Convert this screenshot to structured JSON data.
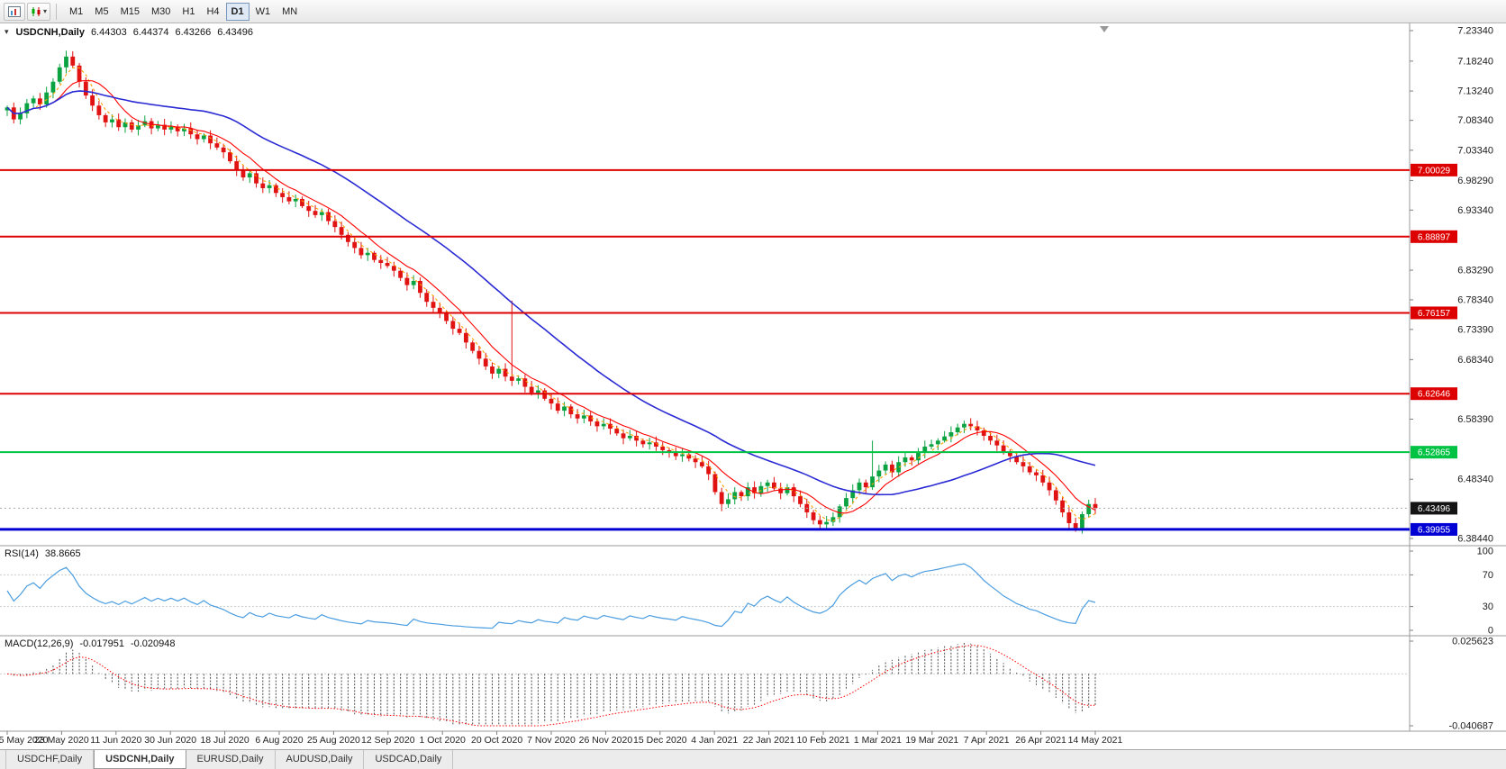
{
  "toolbar": {
    "icon_buttons": [
      {
        "name": "chart-window-button"
      },
      {
        "name": "chart-type-button",
        "has_dropdown": true
      }
    ],
    "timeframes": [
      {
        "label": "M1",
        "active": false
      },
      {
        "label": "M5",
        "active": false
      },
      {
        "label": "M15",
        "active": false
      },
      {
        "label": "M30",
        "active": false
      },
      {
        "label": "H1",
        "active": false
      },
      {
        "label": "H4",
        "active": false
      },
      {
        "label": "D1",
        "active": true
      },
      {
        "label": "W1",
        "active": false
      },
      {
        "label": "MN",
        "active": false
      }
    ]
  },
  "main_title": {
    "symbol": "USDCNH,Daily",
    "open": "6.44303",
    "high": "6.44374",
    "low": "6.43266",
    "close": "6.43496"
  },
  "rsi_panel": {
    "label": "RSI(14)",
    "value": "38.8665"
  },
  "macd_panel": {
    "label": "MACD(12,26,9)",
    "main": "-0.017951",
    "signal": "-0.020948"
  },
  "tabs": [
    {
      "label": "USDCHF,Daily",
      "active": false
    },
    {
      "label": "USDCNH,Daily",
      "active": true
    },
    {
      "label": "EURUSD,Daily",
      "active": false
    },
    {
      "label": "AUDUSD,Daily",
      "active": false
    },
    {
      "label": "USDCAD,Daily",
      "active": false
    }
  ],
  "chart_data": {
    "type": "candlestick",
    "symbol": "USDCNH",
    "timeframe": "Daily",
    "y_range": [
      6.3844,
      7.2334
    ],
    "price_axis_ticks": [
      {
        "label": "7.23340",
        "value": 7.2334
      },
      {
        "label": "7.18240",
        "value": 7.1824
      },
      {
        "label": "7.13240",
        "value": 7.1324
      },
      {
        "label": "7.08340",
        "value": 7.0834
      },
      {
        "label": "7.03340",
        "value": 7.0334
      },
      {
        "label": "6.98290",
        "value": 6.9829
      },
      {
        "label": "6.93340",
        "value": 6.9334
      },
      {
        "label": "6.83290",
        "value": 6.8329
      },
      {
        "label": "6.78340",
        "value": 6.7834
      },
      {
        "label": "6.73390",
        "value": 6.7339
      },
      {
        "label": "6.68340",
        "value": 6.6834
      },
      {
        "label": "6.58390",
        "value": 6.5839
      },
      {
        "label": "6.48340",
        "value": 6.4834
      },
      {
        "label": "6.38440",
        "value": 6.3844
      }
    ],
    "x_labels": [
      "5 May 2020",
      "23 May 2020",
      "11 Jun 2020",
      "30 Jun 2020",
      "18 Jul 2020",
      "6 Aug 2020",
      "25 Aug 2020",
      "12 Sep 2020",
      "1 Oct 2020",
      "20 Oct 2020",
      "7 Nov 2020",
      "26 Nov 2020",
      "15 Dec 2020",
      "4 Jan 2021",
      "22 Jan 2021",
      "10 Feb 2021",
      "1 Mar 2021",
      "19 Mar 2021",
      "7 Apr 2021",
      "26 Apr 2021",
      "14 May 2021"
    ],
    "first_open": 7.1,
    "closes": [
      7.105,
      7.085,
      7.095,
      7.112,
      7.12,
      7.11,
      7.13,
      7.148,
      7.172,
      7.19,
      7.175,
      7.148,
      7.125,
      7.108,
      7.092,
      7.08,
      7.085,
      7.072,
      7.08,
      7.068,
      7.075,
      7.082,
      7.07,
      7.076,
      7.068,
      7.073,
      7.065,
      7.07,
      7.06,
      7.052,
      7.058,
      7.045,
      7.038,
      7.03,
      7.015,
      7.0,
      6.988,
      6.995,
      6.978,
      6.97,
      6.975,
      6.962,
      6.955,
      6.948,
      6.952,
      6.94,
      6.932,
      6.925,
      6.93,
      6.915,
      6.905,
      6.892,
      6.88,
      6.87,
      6.858,
      6.862,
      6.85,
      6.845,
      6.84,
      6.832,
      6.82,
      6.808,
      6.815,
      6.795,
      6.78,
      6.77,
      6.762,
      6.748,
      6.735,
      6.728,
      6.712,
      6.698,
      6.685,
      6.672,
      6.66,
      6.668,
      6.655,
      6.648,
      6.652,
      6.638,
      6.628,
      6.632,
      6.618,
      6.61,
      6.598,
      6.605,
      6.592,
      6.585,
      6.59,
      6.58,
      6.572,
      6.576,
      6.568,
      6.56,
      6.552,
      6.556,
      6.548,
      6.542,
      6.545,
      6.538,
      6.532,
      6.528,
      6.522,
      6.525,
      6.518,
      6.512,
      6.505,
      6.492,
      6.462,
      6.442,
      6.45,
      6.462,
      6.455,
      6.47,
      6.46,
      6.472,
      6.478,
      6.468,
      6.46,
      6.47,
      6.455,
      6.442,
      6.428,
      6.415,
      6.408,
      6.412,
      6.42,
      6.438,
      6.452,
      6.465,
      6.478,
      6.47,
      6.488,
      6.498,
      6.508,
      6.495,
      6.512,
      6.52,
      6.515,
      6.528,
      6.538,
      6.542,
      6.548,
      6.555,
      6.562,
      6.57,
      6.576,
      6.572,
      6.565,
      6.556,
      6.548,
      6.54,
      6.53,
      6.522,
      6.512,
      6.505,
      6.495,
      6.49,
      6.478,
      6.465,
      6.448,
      6.428,
      6.41,
      6.402,
      6.425,
      6.442,
      6.435
    ],
    "wick_high_overrides": {
      "9": 7.2,
      "77": 6.782,
      "132": 6.548
    },
    "wick_low_overrides": {
      "109": 6.43,
      "124": 6.4,
      "162": 6.399,
      "163": 6.397
    },
    "levels": [
      {
        "label": "7.00029",
        "value": 7.00029,
        "color": "#dd0000",
        "width": 2,
        "type": "resistance"
      },
      {
        "label": "6.88897",
        "value": 6.88897,
        "color": "#dd0000",
        "width": 2,
        "type": "resistance"
      },
      {
        "label": "6.76157",
        "value": 6.76157,
        "color": "#dd0000",
        "width": 2,
        "type": "resistance"
      },
      {
        "label": "6.62646",
        "value": 6.62646,
        "color": "#dd0000",
        "width": 2,
        "type": "resistance"
      },
      {
        "label": "6.52865",
        "value": 6.52865,
        "color": "#00c243",
        "width": 2,
        "type": "support"
      },
      {
        "label": "6.39955",
        "value": 6.39955,
        "color": "#0000d4",
        "width": 3,
        "type": "support"
      }
    ],
    "current_price": {
      "label": "6.43496",
      "value": 6.43496,
      "badge_bg": "#141414"
    },
    "colors": {
      "up": "#0ba342",
      "down": "#e01212",
      "ma_fast": "#ff0000",
      "ma_dotted": "#ffa000",
      "ma_slow": "#2a2ad4",
      "rsi": "#4a9de0",
      "macd_hist": "#4d4d4d",
      "macd_signal": "#ff0000",
      "badge_text": "#ffffff",
      "axis_text": "#1a1a1a",
      "grid": "#cccccc"
    },
    "moving_averages": [
      {
        "name": "short-dotted",
        "render_period": 4,
        "color_key": "ma_dotted",
        "style": "dotted"
      },
      {
        "name": "fast",
        "render_period": 8,
        "color_key": "ma_fast",
        "style": "solid"
      },
      {
        "name": "slow",
        "render_period": 28,
        "color_key": "ma_slow",
        "style": "solid"
      }
    ],
    "rsi": {
      "display_label": "RSI(14)",
      "current": 38.8665,
      "render_period": 9,
      "levels": [
        30,
        70
      ],
      "axis_labels": [
        {
          "label": "100",
          "value": 100
        },
        {
          "label": "70",
          "value": 70
        },
        {
          "label": "30",
          "value": 30
        },
        {
          "label": "0",
          "value": 0
        }
      ]
    },
    "macd": {
      "display_label": "MACD(12,26,9)",
      "current_main": -0.017951,
      "current_signal": -0.020948,
      "fast": 8,
      "slow": 17,
      "signal": 6,
      "range_top": {
        "label": "0.025623",
        "value": 0.025623
      },
      "range_bottom": {
        "label": "-0.040687",
        "value": -0.040687
      }
    }
  }
}
